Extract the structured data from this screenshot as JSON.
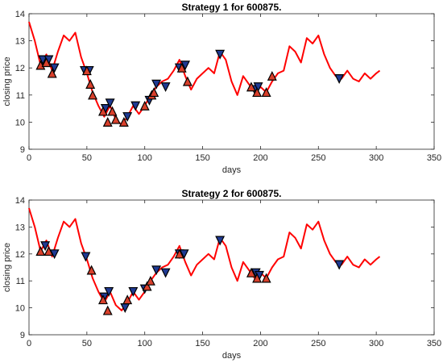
{
  "chart_data": [
    {
      "type": "line",
      "title": "Strategy 1 for 600875.",
      "xlabel": "days",
      "ylabel": "closing price",
      "xlim": [
        0,
        350
      ],
      "ylim": [
        9,
        14
      ],
      "xticks": [
        0,
        50,
        100,
        150,
        200,
        250,
        300,
        350
      ],
      "yticks": [
        9,
        10,
        11,
        12,
        13,
        14
      ],
      "grid": false,
      "line_color": "#ff0000",
      "price_series": {
        "x": [
          0,
          5,
          10,
          15,
          20,
          25,
          30,
          35,
          40,
          45,
          50,
          55,
          60,
          65,
          70,
          75,
          80,
          85,
          90,
          95,
          100,
          105,
          110,
          115,
          120,
          125,
          130,
          135,
          140,
          145,
          150,
          155,
          160,
          165,
          170,
          175,
          180,
          185,
          190,
          195,
          200,
          205,
          210,
          215,
          220,
          225,
          230,
          235,
          240,
          245,
          250,
          255,
          260,
          265,
          270,
          275,
          280,
          285,
          290,
          295,
          300,
          303
        ],
        "y": [
          13.7,
          13.0,
          12.1,
          12.5,
          11.9,
          12.6,
          13.2,
          13.0,
          13.3,
          12.4,
          11.8,
          11.1,
          10.6,
          10.2,
          10.6,
          10.1,
          9.9,
          10.2,
          10.6,
          10.3,
          10.6,
          11.0,
          11.3,
          11.5,
          11.6,
          11.9,
          12.3,
          11.7,
          11.2,
          11.6,
          11.8,
          12.0,
          11.8,
          12.6,
          12.3,
          11.5,
          11.0,
          11.7,
          11.4,
          11.1,
          11.3,
          11.1,
          11.5,
          11.8,
          11.9,
          12.8,
          12.6,
          12.2,
          13.1,
          12.9,
          13.2,
          12.5,
          12.0,
          11.7,
          11.6,
          11.9,
          11.6,
          11.5,
          11.8,
          11.6,
          11.8,
          11.9
        ]
      },
      "sell_markers": {
        "x": [
          12,
          17,
          22,
          48,
          52,
          66,
          70,
          85,
          92,
          104,
          110,
          118,
          130,
          135,
          165,
          195,
          198,
          268
        ],
        "y": [
          12.3,
          12.3,
          12.0,
          11.9,
          11.9,
          10.5,
          10.7,
          10.2,
          10.6,
          10.8,
          11.4,
          11.3,
          12.0,
          12.1,
          12.5,
          11.2,
          11.3,
          11.6
        ],
        "color": "#1f3a93"
      },
      "buy_markers": {
        "x": [
          10,
          15,
          20,
          50,
          53,
          55,
          64,
          68,
          72,
          75,
          82,
          100,
          106,
          108,
          132,
          137,
          192,
          197,
          205,
          210
        ],
        "y": [
          12.1,
          12.2,
          11.8,
          11.9,
          11.4,
          11.0,
          10.4,
          10.0,
          10.4,
          10.1,
          10.0,
          10.6,
          11.0,
          11.1,
          12.0,
          11.5,
          11.3,
          11.1,
          11.1,
          11.7
        ],
        "color": "#d9402b"
      }
    },
    {
      "type": "line",
      "title": "Strategy 2 for 600875.",
      "xlabel": "days",
      "ylabel": "closing price",
      "xlim": [
        0,
        350
      ],
      "ylim": [
        9,
        14
      ],
      "xticks": [
        0,
        50,
        100,
        150,
        200,
        250,
        300,
        350
      ],
      "yticks": [
        9,
        10,
        11,
        12,
        13,
        14
      ],
      "grid": false,
      "line_color": "#ff0000",
      "price_series": {
        "x": [
          0,
          5,
          10,
          15,
          20,
          25,
          30,
          35,
          40,
          45,
          50,
          55,
          60,
          65,
          70,
          75,
          80,
          85,
          90,
          95,
          100,
          105,
          110,
          115,
          120,
          125,
          130,
          135,
          140,
          145,
          150,
          155,
          160,
          165,
          170,
          175,
          180,
          185,
          190,
          195,
          200,
          205,
          210,
          215,
          220,
          225,
          230,
          235,
          240,
          245,
          250,
          255,
          260,
          265,
          270,
          275,
          280,
          285,
          290,
          295,
          300,
          303
        ],
        "y": [
          13.7,
          13.0,
          12.1,
          12.5,
          11.9,
          12.6,
          13.2,
          13.0,
          13.3,
          12.4,
          11.8,
          11.1,
          10.6,
          10.2,
          10.6,
          10.1,
          9.9,
          10.2,
          10.6,
          10.3,
          10.6,
          11.0,
          11.3,
          11.5,
          11.6,
          11.9,
          12.3,
          11.7,
          11.2,
          11.6,
          11.8,
          12.0,
          11.8,
          12.6,
          12.3,
          11.5,
          11.0,
          11.7,
          11.4,
          11.1,
          11.3,
          11.1,
          11.5,
          11.8,
          11.9,
          12.8,
          12.6,
          12.2,
          13.1,
          12.9,
          13.2,
          12.5,
          12.0,
          11.7,
          11.6,
          11.9,
          11.6,
          11.5,
          11.8,
          11.6,
          11.8,
          11.9
        ]
      },
      "sell_markers": {
        "x": [
          14,
          22,
          49,
          65,
          69,
          83,
          90,
          100,
          110,
          118,
          130,
          134,
          165,
          196,
          199,
          268
        ],
        "y": [
          12.3,
          12.0,
          11.9,
          10.4,
          10.6,
          10.0,
          10.6,
          10.7,
          11.4,
          11.3,
          12.0,
          12.0,
          12.5,
          11.3,
          11.2,
          11.6
        ],
        "color": "#1f3a93"
      },
      "buy_markers": {
        "x": [
          10,
          17,
          54,
          64,
          68,
          85,
          102,
          105,
          130,
          192,
          197,
          205
        ],
        "y": [
          12.1,
          12.1,
          11.4,
          10.3,
          9.9,
          10.3,
          10.8,
          11.0,
          12.0,
          11.3,
          11.1,
          11.1
        ],
        "color": "#d9402b"
      }
    }
  ]
}
